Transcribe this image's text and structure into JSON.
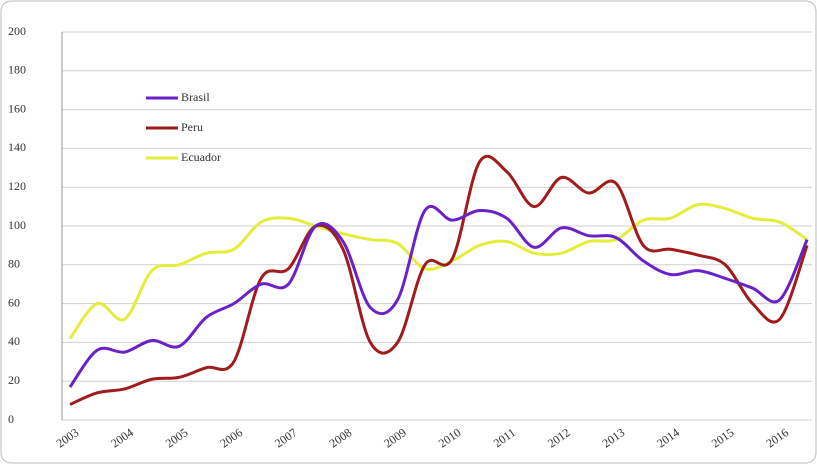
{
  "chart_data": {
    "type": "line",
    "categories": [
      "2003",
      null,
      "2004",
      null,
      "2005",
      null,
      "2006",
      null,
      "2007",
      null,
      "2008",
      null,
      "2009",
      null,
      "2010",
      null,
      "2011",
      null,
      "2012",
      null,
      "2013",
      null,
      "2014",
      null,
      "2015",
      null,
      "2016",
      null
    ],
    "series": [
      {
        "name": "Brasil",
        "color": "#6a22c8",
        "values": [
          17,
          36,
          35,
          41,
          38,
          53,
          60,
          70,
          70,
          100,
          92,
          58,
          62,
          108,
          103,
          108,
          104,
          89,
          99,
          95,
          94,
          82,
          75,
          77,
          73,
          68,
          62,
          93
        ]
      },
      {
        "name": "Peru",
        "color": "#a01c1c",
        "values": [
          8,
          14,
          16,
          21,
          22,
          27,
          30,
          73,
          78,
          100,
          88,
          40,
          40,
          80,
          83,
          133,
          128,
          110,
          125,
          117,
          122,
          90,
          88,
          85,
          80,
          60,
          52,
          90
        ]
      },
      {
        "name": "Ecuador",
        "color": "#e4ee3a",
        "values": [
          42,
          60,
          52,
          77,
          80,
          86,
          88,
          102,
          104,
          100,
          96,
          93,
          91,
          78,
          82,
          90,
          92,
          86,
          86,
          92,
          93,
          103,
          104,
          111,
          109,
          104,
          102,
          93
        ]
      }
    ],
    "ylim": [
      0,
      200
    ],
    "yticks": [
      0,
      20,
      40,
      60,
      80,
      100,
      120,
      140,
      160,
      180,
      200
    ],
    "grid": true
  }
}
